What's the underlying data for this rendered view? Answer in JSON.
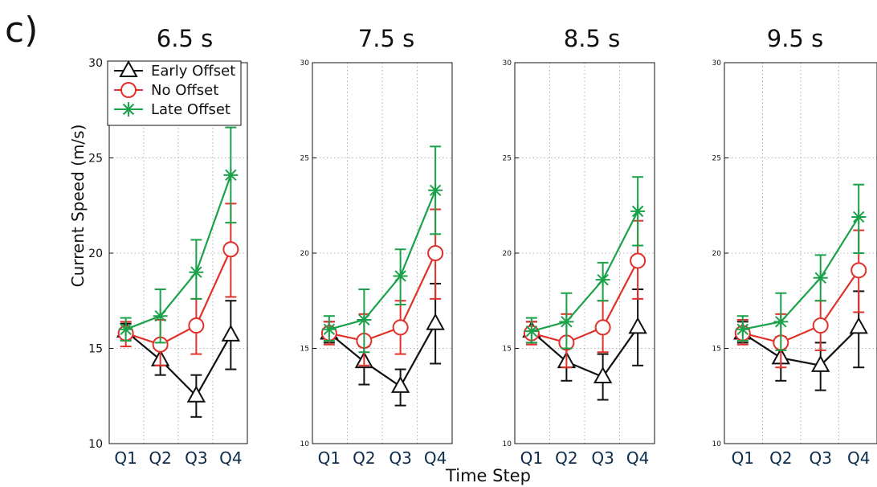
{
  "panel_label": "c)",
  "shared_ylabel": "Current Speed (m/s)",
  "shared_xlabel": "Time Step",
  "legend": [
    {
      "label": "Early Offset",
      "color": "#111111",
      "marker": "triangle"
    },
    {
      "label": "No Offset",
      "color": "#e0312a",
      "marker": "circle"
    },
    {
      "label": "Late Offset",
      "color": "#1aa14a",
      "marker": "asterisk"
    }
  ],
  "chart_data": [
    {
      "type": "line",
      "title": "6.5 s",
      "categories": [
        "Q1",
        "Q2",
        "Q3",
        "Q4"
      ],
      "ylim": [
        10,
        30
      ],
      "yticks": [
        10,
        15,
        20,
        25,
        30
      ],
      "grid": "dotted",
      "legend_position": "top-left",
      "series": [
        {
          "name": "Early Offset",
          "color": "#111111",
          "marker": "triangle",
          "values": [
            15.9,
            14.4,
            12.5,
            15.7
          ],
          "err_low": [
            15.5,
            13.6,
            11.4,
            13.9
          ],
          "err_high": [
            16.3,
            15.0,
            13.6,
            17.5
          ]
        },
        {
          "name": "No Offset",
          "color": "#e0312a",
          "marker": "circle",
          "values": [
            15.8,
            15.2,
            16.2,
            20.2
          ],
          "err_low": [
            15.1,
            14.1,
            14.7,
            17.7
          ],
          "err_high": [
            16.4,
            16.5,
            17.6,
            22.6
          ]
        },
        {
          "name": "Late Offset",
          "color": "#1aa14a",
          "marker": "asterisk",
          "values": [
            16.0,
            16.7,
            19.0,
            24.1
          ],
          "err_low": [
            15.4,
            15.3,
            17.6,
            21.6
          ],
          "err_high": [
            16.6,
            18.1,
            20.7,
            26.6
          ]
        }
      ]
    },
    {
      "type": "line",
      "title": "7.5 s",
      "categories": [
        "Q1",
        "Q2",
        "Q3",
        "Q4"
      ],
      "ylim": [
        10,
        30
      ],
      "yticks": [
        10,
        15,
        20,
        25,
        30
      ],
      "grid": "dotted",
      "series": [
        {
          "name": "Early Offset",
          "color": "#111111",
          "marker": "triangle",
          "values": [
            15.8,
            14.3,
            13.0,
            16.3
          ],
          "err_low": [
            15.3,
            13.1,
            12.0,
            14.2
          ],
          "err_high": [
            16.4,
            15.1,
            13.9,
            18.4
          ]
        },
        {
          "name": "No Offset",
          "color": "#e0312a",
          "marker": "circle",
          "values": [
            15.8,
            15.4,
            16.1,
            20.0
          ],
          "err_low": [
            15.2,
            14.1,
            14.7,
            17.6
          ],
          "err_high": [
            16.4,
            16.8,
            17.5,
            22.3
          ]
        },
        {
          "name": "Late Offset",
          "color": "#1aa14a",
          "marker": "asterisk",
          "values": [
            16.0,
            16.5,
            18.8,
            23.3
          ],
          "err_low": [
            15.4,
            14.8,
            17.3,
            21.0
          ],
          "err_high": [
            16.7,
            18.1,
            20.2,
            25.6
          ]
        }
      ]
    },
    {
      "type": "line",
      "title": "8.5 s",
      "categories": [
        "Q1",
        "Q2",
        "Q3",
        "Q4"
      ],
      "ylim": [
        10,
        30
      ],
      "yticks": [
        10,
        15,
        20,
        25,
        30
      ],
      "grid": "dotted",
      "series": [
        {
          "name": "Early Offset",
          "color": "#111111",
          "marker": "triangle",
          "values": [
            15.9,
            14.3,
            13.5,
            16.1
          ],
          "err_low": [
            15.3,
            13.3,
            12.3,
            14.1
          ],
          "err_high": [
            16.4,
            15.1,
            14.7,
            18.1
          ]
        },
        {
          "name": "No Offset",
          "color": "#e0312a",
          "marker": "circle",
          "values": [
            15.8,
            15.3,
            16.1,
            19.6
          ],
          "err_low": [
            15.2,
            14.0,
            14.8,
            17.6
          ],
          "err_high": [
            16.4,
            16.8,
            17.5,
            21.7
          ]
        },
        {
          "name": "Late Offset",
          "color": "#1aa14a",
          "marker": "asterisk",
          "values": [
            15.9,
            16.4,
            18.6,
            22.2
          ],
          "err_low": [
            15.3,
            15.0,
            17.5,
            20.4
          ],
          "err_high": [
            16.6,
            17.9,
            19.5,
            24.0
          ]
        }
      ]
    },
    {
      "type": "line",
      "title": "9.5 s",
      "categories": [
        "Q1",
        "Q2",
        "Q3",
        "Q4"
      ],
      "ylim": [
        10,
        30
      ],
      "yticks": [
        10,
        15,
        20,
        25,
        30
      ],
      "grid": "dotted",
      "series": [
        {
          "name": "Early Offset",
          "color": "#111111",
          "marker": "triangle",
          "values": [
            15.8,
            14.5,
            14.1,
            16.1
          ],
          "err_low": [
            15.3,
            13.3,
            12.8,
            14.0
          ],
          "err_high": [
            16.4,
            15.6,
            15.3,
            18.0
          ]
        },
        {
          "name": "No Offset",
          "color": "#e0312a",
          "marker": "circle",
          "values": [
            15.8,
            15.3,
            16.2,
            19.1
          ],
          "err_low": [
            15.2,
            14.0,
            14.9,
            16.9
          ],
          "err_high": [
            16.5,
            16.8,
            17.5,
            21.2
          ]
        },
        {
          "name": "Late Offset",
          "color": "#1aa14a",
          "marker": "asterisk",
          "values": [
            16.0,
            16.4,
            18.7,
            21.9
          ],
          "err_low": [
            15.4,
            14.9,
            17.5,
            20.0
          ],
          "err_high": [
            16.7,
            17.9,
            19.9,
            23.6
          ]
        }
      ]
    }
  ]
}
